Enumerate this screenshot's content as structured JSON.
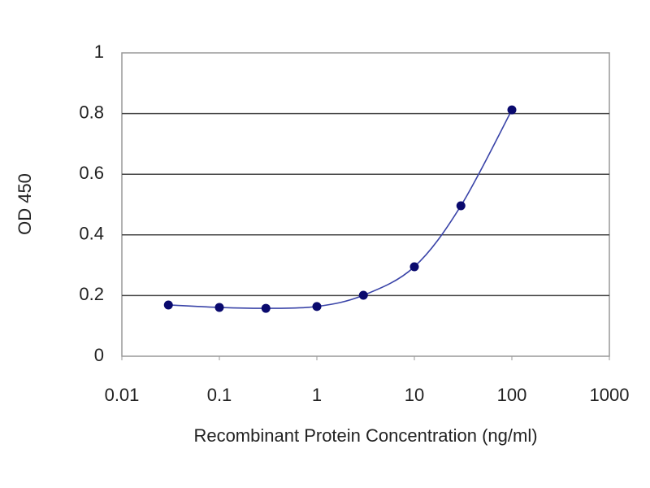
{
  "chart_data": {
    "type": "scatter",
    "x_label": "Recombinant Protein Concentration (ng/ml)",
    "y_label": "OD 450",
    "x": [
      0.03,
      0.1,
      0.3,
      1,
      3,
      10,
      30,
      100
    ],
    "values": [
      0.169,
      0.161,
      0.158,
      0.164,
      0.201,
      0.295,
      0.496,
      0.812
    ],
    "color": "#0a0a6e",
    "line_color": "#3a44a8",
    "smooth_line": true,
    "x_log": true,
    "xlim": [
      0.01,
      1000
    ],
    "xticks": [
      0.01,
      0.1,
      1,
      10,
      100,
      1000
    ],
    "ylim": [
      0,
      1
    ],
    "yticks": [
      0,
      0.2,
      0.4,
      0.6,
      0.8,
      1
    ],
    "grid": true
  }
}
